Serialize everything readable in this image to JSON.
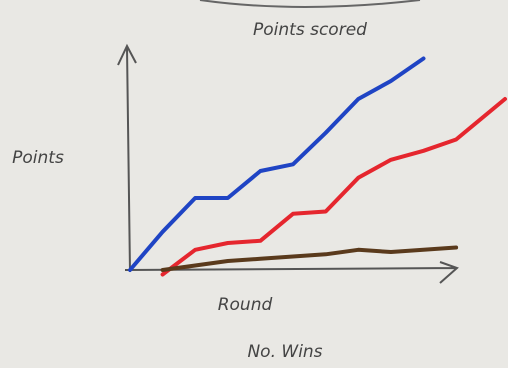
{
  "chart_data": {
    "type": "line",
    "title": "Points scored",
    "y_label": "Points",
    "x_label": "Round",
    "caption": "No. Wins",
    "x": [
      0,
      1,
      2,
      3,
      4,
      5,
      6,
      7,
      8,
      9,
      10,
      11.5
    ],
    "xlim": [
      0,
      11.5
    ],
    "ylim": [
      -5,
      100
    ],
    "series": [
      {
        "color": "#1f44c4",
        "values": [
          0,
          17,
          32,
          32,
          44,
          47,
          61,
          76,
          84,
          94,
          null,
          null
        ]
      },
      {
        "color": "#e5262e",
        "values": [
          null,
          -2,
          9,
          12,
          13,
          25,
          26,
          41,
          49,
          53,
          58,
          76
        ]
      },
      {
        "color": "#5a3a1c",
        "values": [
          null,
          0,
          2,
          4,
          5,
          6,
          7,
          9,
          8,
          9,
          10,
          null
        ]
      }
    ]
  }
}
